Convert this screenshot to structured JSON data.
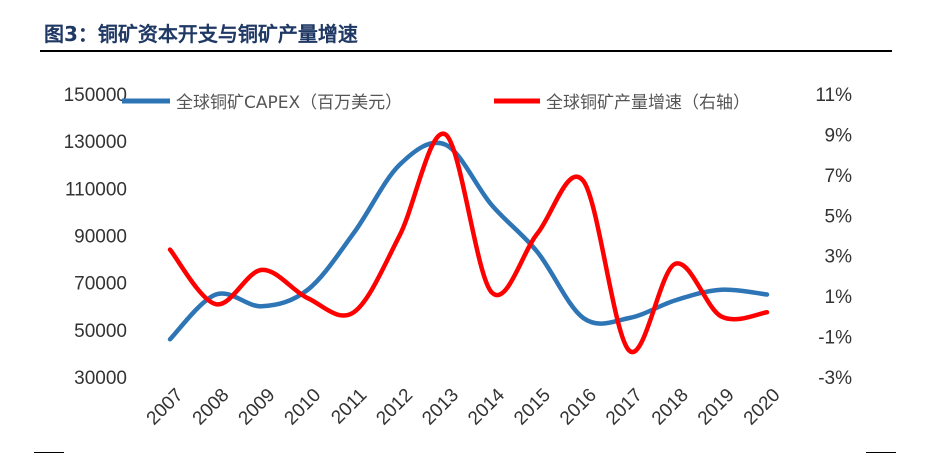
{
  "title": "图3：铜矿资本开支与铜矿产量增速",
  "chart_data": {
    "type": "line",
    "x": [
      "2007",
      "2008",
      "2009",
      "2010",
      "2011",
      "2012",
      "2013",
      "2014",
      "2015",
      "2016",
      "2017",
      "2018",
      "2019",
      "2020"
    ],
    "left_axis": {
      "ylim": [
        30000,
        150000
      ],
      "ticks": [
        "150000",
        "130000",
        "110000",
        "90000",
        "70000",
        "50000",
        "30000"
      ]
    },
    "right_axis": {
      "ylim": [
        -3,
        11
      ],
      "ticks": [
        "11%",
        "9%",
        "7%",
        "5%",
        "3%",
        "1%",
        "-1%",
        "-3%"
      ]
    },
    "series": [
      {
        "name": "全球铜矿CAPEX（百万美元）",
        "axis": "left",
        "color": "#2e75b6",
        "values": [
          46000,
          65000,
          60000,
          67000,
          91000,
          120000,
          128500,
          103000,
          83000,
          55000,
          55000,
          62500,
          67000,
          65000
        ]
      },
      {
        "name": "全球铜矿产量增速（右轴）",
        "axis": "right",
        "color": "#ff0000",
        "values": [
          3.3,
          0.6,
          2.3,
          0.9,
          0.2,
          4.0,
          9.0,
          1.2,
          4.1,
          6.7,
          -1.7,
          2.6,
          0.0,
          0.2
        ]
      }
    ],
    "legend": "top",
    "grid": false
  }
}
